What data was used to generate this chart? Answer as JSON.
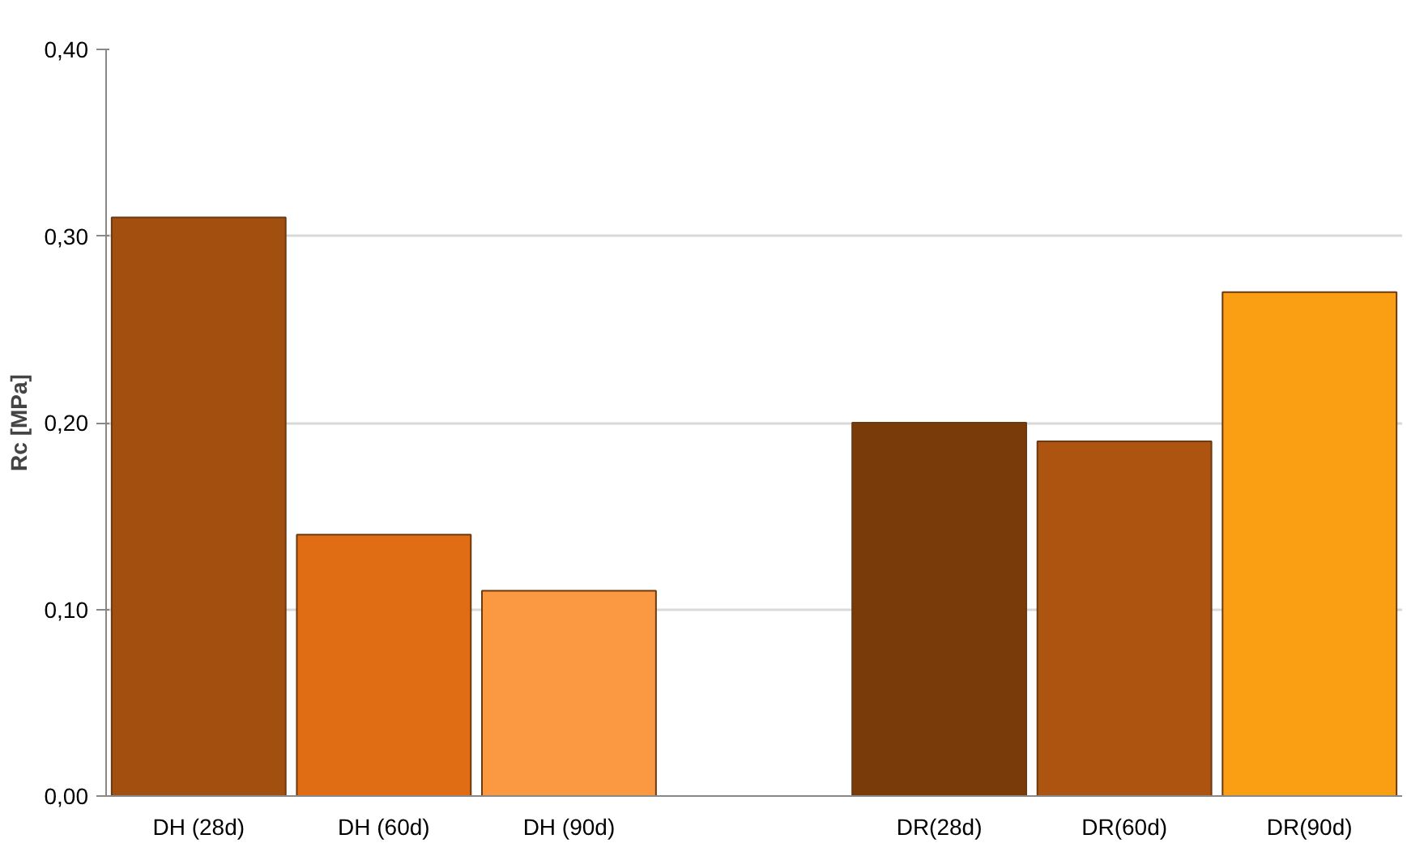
{
  "chart_data": {
    "type": "bar",
    "ylabel": "Rc [MPa]",
    "categories": [
      "DH (28d)",
      "DH (60d)",
      "DH (90d)",
      null,
      "DR(28d)",
      "DR(60d)",
      "DR(90d)"
    ],
    "values": [
      0.31,
      0.14,
      0.11,
      null,
      0.2,
      0.19,
      0.27
    ],
    "colors": [
      "#a24f10",
      "#e06c14",
      "#fb9842",
      null,
      "#7a3b0a",
      "#ad5410",
      "#fa9e14"
    ],
    "ylim": [
      0,
      0.4
    ],
    "yticks": [
      {
        "value": 0,
        "label": "0,00"
      },
      {
        "value": 0.1,
        "label": "0,10"
      },
      {
        "value": 0.2,
        "label": "0,20"
      },
      {
        "value": 0.3,
        "label": "0,30"
      },
      {
        "value": 0.4,
        "label": "0,40"
      }
    ],
    "grid": "y"
  }
}
